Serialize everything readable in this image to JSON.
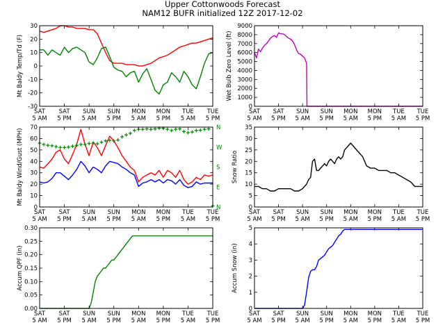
{
  "title": "Upper Cottonwoods Forecast",
  "subtitle": "NAM12 BUFR initialized 12Z 2017-12-02",
  "x_day_labels": [
    "SAT",
    "SAT",
    "SUN",
    "SUN",
    "MON",
    "MON",
    "TUE",
    "TUE"
  ],
  "x_time_labels": [
    "5 AM",
    "5 PM",
    "5 AM",
    "5 PM",
    "5 AM",
    "5 PM",
    "5 AM",
    "5 PM"
  ],
  "chart_data": [
    {
      "id": "temp",
      "type": "line",
      "ylabel": "Mt Baldy Temp/Td (F)",
      "ylim": [
        -30,
        30
      ],
      "yticks": [
        -30,
        -20,
        -10,
        0,
        10,
        20,
        30
      ],
      "xlim": [
        0,
        84
      ],
      "series": [
        {
          "name": "Temp",
          "color": "#ff0000",
          "x": [
            0,
            2,
            4,
            6,
            8,
            10,
            12,
            14,
            16,
            18,
            20,
            22,
            24,
            26,
            28,
            30,
            32,
            34,
            36,
            38,
            40,
            42,
            44,
            46,
            48,
            50,
            52,
            54,
            56,
            58,
            60,
            62,
            64,
            66,
            68,
            70,
            72,
            74,
            76,
            78,
            80,
            82,
            84
          ],
          "y": [
            26,
            25,
            26,
            27,
            28,
            30,
            30,
            29,
            29,
            28,
            28,
            28,
            27,
            27,
            24,
            17,
            10,
            4,
            2,
            2,
            2,
            1,
            1,
            1,
            0,
            0,
            1,
            2,
            4,
            6,
            7,
            8,
            10,
            12,
            14,
            15,
            16,
            17,
            17,
            18,
            19,
            20,
            21
          ]
        },
        {
          "name": "Dewpoint",
          "color": "#008000",
          "x": [
            0,
            2,
            4,
            6,
            8,
            10,
            12,
            14,
            16,
            18,
            20,
            22,
            24,
            26,
            28,
            30,
            32,
            34,
            36,
            38,
            40,
            42,
            44,
            46,
            48,
            50,
            52,
            54,
            56,
            58,
            60,
            62,
            64,
            66,
            68,
            70,
            72,
            74,
            76,
            78,
            80,
            82,
            84
          ],
          "y": [
            12,
            12,
            8,
            12,
            10,
            8,
            14,
            10,
            13,
            14,
            12,
            10,
            3,
            1,
            6,
            13,
            14,
            7,
            -1,
            -3,
            -4,
            -8,
            -5,
            -4,
            -12,
            -6,
            -2,
            -10,
            -18,
            -21,
            -14,
            -12,
            -5,
            -8,
            -12,
            -4,
            -8,
            -14,
            -17,
            -8,
            2,
            9,
            10
          ]
        }
      ]
    },
    {
      "id": "wbz",
      "type": "line",
      "ylabel": "Wet Bulb Zero Level (ft)",
      "ylim": [
        0,
        9000
      ],
      "yticks": [
        0,
        1000,
        2000,
        3000,
        4000,
        5000,
        6000,
        7000,
        8000,
        9000
      ],
      "xlim": [
        0,
        84
      ],
      "series": [
        {
          "name": "Wet Bulb Zero",
          "color": "#bf00bf",
          "x": [
            0,
            1,
            2,
            3,
            4,
            5,
            6,
            7,
            8,
            9,
            10,
            11,
            12,
            13,
            14,
            15,
            16,
            17,
            18,
            19,
            20,
            21,
            22,
            23,
            24,
            25,
            26,
            26.2,
            27,
            28,
            30,
            32,
            34,
            36,
            38,
            40,
            42,
            44,
            46,
            48,
            50,
            52,
            54,
            56,
            58,
            60,
            62,
            64,
            66,
            68,
            70,
            72,
            74,
            76,
            78,
            80,
            82,
            84
          ],
          "y": [
            6000,
            5400,
            6400,
            6100,
            6500,
            6800,
            7000,
            7300,
            7600,
            7800,
            7900,
            7700,
            8200,
            8100,
            8100,
            8000,
            7800,
            7600,
            7500,
            7300,
            6900,
            6300,
            5900,
            5800,
            5600,
            5400,
            4800,
            0,
            0,
            0,
            0,
            0,
            0,
            0,
            0,
            0,
            0,
            0,
            0,
            0,
            0,
            0,
            0,
            0,
            0,
            0,
            0,
            0,
            0,
            0,
            0,
            0,
            0,
            0,
            0,
            0,
            0,
            0
          ]
        }
      ]
    },
    {
      "id": "wind",
      "type": "line",
      "ylabel": "Mt Baldy Wind/Gust (MPH)",
      "ylim": [
        0,
        70
      ],
      "yticks": [
        0,
        10,
        20,
        30,
        40,
        50,
        60,
        70
      ],
      "right_axis_labels": [
        "N",
        "W",
        "S",
        "E",
        "N"
      ],
      "xlim": [
        0,
        84
      ],
      "series": [
        {
          "name": "Gust",
          "color": "#ff0000",
          "x": [
            0,
            2,
            4,
            6,
            8,
            10,
            12,
            14,
            16,
            18,
            20,
            22,
            24,
            26,
            28,
            30,
            32,
            34,
            36,
            38,
            40,
            42,
            44,
            46,
            48,
            50,
            52,
            54,
            56,
            58,
            60,
            62,
            64,
            66,
            68,
            70,
            72,
            74,
            76,
            78,
            80,
            82,
            84
          ],
          "y": [
            35,
            34,
            38,
            42,
            48,
            50,
            42,
            38,
            46,
            55,
            68,
            55,
            45,
            57,
            52,
            45,
            54,
            62,
            58,
            52,
            45,
            40,
            35,
            32,
            22,
            26,
            28,
            30,
            28,
            32,
            26,
            32,
            30,
            26,
            32,
            24,
            20,
            22,
            26,
            24,
            28,
            27,
            28
          ]
        },
        {
          "name": "Wind",
          "color": "#0000ff",
          "x": [
            0,
            2,
            4,
            6,
            8,
            10,
            12,
            14,
            16,
            18,
            20,
            22,
            24,
            26,
            28,
            30,
            32,
            34,
            36,
            38,
            40,
            42,
            44,
            46,
            48,
            50,
            52,
            54,
            56,
            58,
            60,
            62,
            64,
            66,
            68,
            70,
            72,
            74,
            76,
            78,
            80,
            82,
            84
          ],
          "y": [
            22,
            21,
            22,
            25,
            30,
            30,
            27,
            24,
            28,
            33,
            40,
            36,
            30,
            35,
            33,
            30,
            36,
            40,
            39,
            38,
            35,
            33,
            30,
            28,
            18,
            21,
            22,
            24,
            22,
            24,
            21,
            24,
            23,
            20,
            24,
            19,
            17,
            18,
            22,
            20,
            21,
            21,
            21
          ]
        },
        {
          "name": "Direction",
          "color": "#008000",
          "marker": "+",
          "x": [
            0,
            2,
            4,
            6,
            8,
            10,
            12,
            14,
            16,
            18,
            20,
            22,
            24,
            26,
            28,
            30,
            32,
            34,
            36,
            38,
            40,
            42,
            44,
            46,
            48,
            50,
            52,
            54,
            56,
            58,
            60,
            62,
            64,
            66,
            68,
            70,
            72,
            74,
            76,
            78,
            80,
            82,
            84
          ],
          "y": [
            288,
            282,
            278,
            276,
            272,
            268,
            268,
            270,
            274,
            278,
            282,
            282,
            286,
            288,
            285,
            292,
            298,
            300,
            298,
            302,
            316,
            325,
            332,
            345,
            350,
            350,
            352,
            350,
            352,
            355,
            355,
            350,
            345,
            350,
            352,
            340,
            335,
            338,
            345,
            346,
            350,
            352,
            5
          ]
        }
      ]
    },
    {
      "id": "ratio",
      "type": "line",
      "ylabel": "Snow Ratio",
      "ylim": [
        0,
        35
      ],
      "yticks": [
        0,
        5,
        10,
        15,
        20,
        25,
        30,
        35
      ],
      "xlim": [
        0,
        84
      ],
      "series": [
        {
          "name": "Snow Ratio",
          "color": "#000000",
          "x": [
            0,
            2,
            4,
            6,
            8,
            10,
            12,
            14,
            16,
            18,
            20,
            22,
            24,
            25,
            26,
            27,
            28,
            29,
            30,
            31,
            32,
            34,
            35,
            36,
            37,
            38,
            39,
            40,
            41,
            42,
            43,
            44,
            45,
            46,
            48,
            49,
            50,
            52,
            54,
            56,
            58,
            60,
            62,
            64,
            66,
            68,
            70,
            72,
            74,
            76,
            78,
            80,
            82,
            84
          ],
          "y": [
            9,
            9,
            8,
            8,
            7,
            7,
            8,
            8,
            8,
            8,
            7,
            7,
            8,
            9,
            10,
            12,
            13,
            20,
            21,
            16,
            16,
            18,
            19,
            18,
            20,
            21,
            20,
            19,
            21,
            22,
            21,
            22,
            25,
            26,
            28,
            27,
            26,
            24,
            22,
            18,
            17,
            17,
            16,
            16,
            16,
            15,
            15,
            14,
            13,
            12,
            11,
            9,
            9,
            9
          ]
        }
      ]
    },
    {
      "id": "qpf",
      "type": "line",
      "ylabel": "Accum QPF (in)",
      "ylim": [
        0,
        0.3
      ],
      "yticks": [
        0.0,
        0.05,
        0.1,
        0.15,
        0.2,
        0.25,
        0.3
      ],
      "xlim": [
        0,
        84
      ],
      "series": [
        {
          "name": "QPF",
          "color": "#008000",
          "x": [
            0,
            5,
            10,
            15,
            20,
            23,
            24,
            25,
            26,
            27,
            28,
            29,
            30,
            31,
            32,
            33,
            34,
            35,
            36,
            37,
            38,
            39,
            40,
            41,
            42,
            43,
            44,
            45,
            46,
            48,
            50,
            55,
            60,
            65,
            70,
            75,
            80,
            84
          ],
          "y": [
            0,
            0,
            0,
            0,
            0,
            0,
            0,
            0.02,
            0.06,
            0.1,
            0.12,
            0.13,
            0.14,
            0.15,
            0.15,
            0.16,
            0.17,
            0.18,
            0.18,
            0.19,
            0.2,
            0.21,
            0.22,
            0.23,
            0.24,
            0.25,
            0.26,
            0.27,
            0.27,
            0.27,
            0.27,
            0.27,
            0.27,
            0.27,
            0.27,
            0.27,
            0.27,
            0.27
          ]
        }
      ]
    },
    {
      "id": "snow",
      "type": "line",
      "ylabel": "Accum Snow (in)",
      "ylim": [
        0,
        5
      ],
      "yticks": [
        0,
        1,
        2,
        3,
        4,
        5
      ],
      "xlim": [
        0,
        84
      ],
      "series": [
        {
          "name": "Snow",
          "color": "#0000ff",
          "x": [
            0,
            5,
            10,
            15,
            20,
            24,
            25,
            26,
            27,
            28,
            29,
            30,
            31,
            32,
            33,
            34,
            35,
            36,
            37,
            38,
            39,
            40,
            41,
            42,
            43,
            44,
            45,
            46,
            48,
            50,
            55,
            60,
            65,
            70,
            75,
            80,
            84
          ],
          "y": [
            0,
            0,
            0,
            0,
            0,
            0,
            0.2,
            1.0,
            1.9,
            2.3,
            2.4,
            2.4,
            2.6,
            3.0,
            3.1,
            3.2,
            3.3,
            3.5,
            3.7,
            3.8,
            3.9,
            4.1,
            4.3,
            4.5,
            4.6,
            4.8,
            4.9,
            4.9,
            4.9,
            4.9,
            4.9,
            4.9,
            4.9,
            4.9,
            4.9,
            4.9,
            4.9
          ]
        }
      ]
    }
  ]
}
